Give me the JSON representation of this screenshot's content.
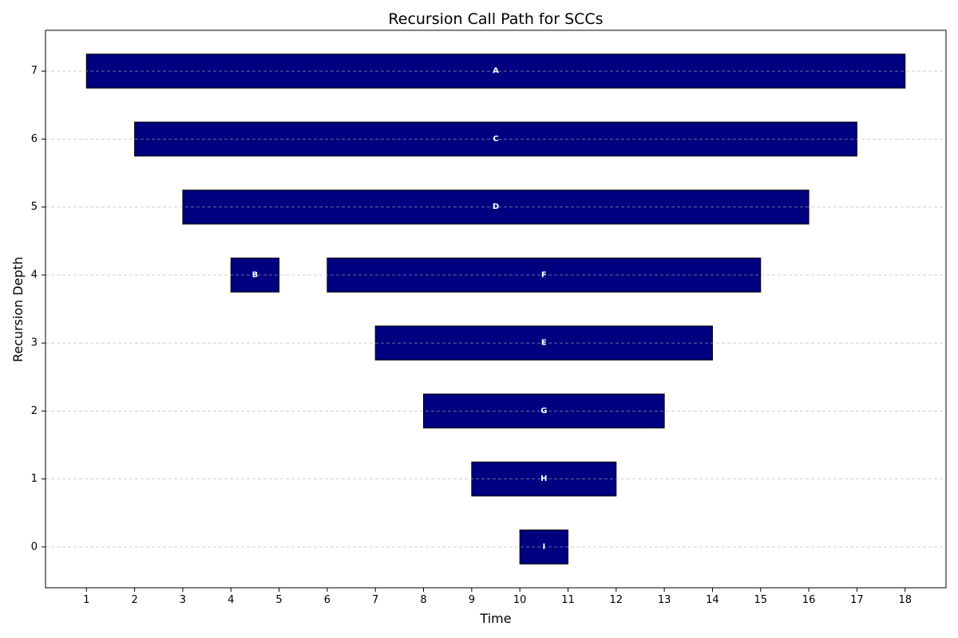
{
  "chart_data": {
    "type": "bar",
    "orientation": "horizontal-gantt",
    "title": "Recursion Call Path for SCCs",
    "xlabel": "Time",
    "ylabel": "Recursion Depth",
    "xticks": [
      1,
      2,
      3,
      4,
      5,
      6,
      7,
      8,
      9,
      10,
      11,
      12,
      13,
      14,
      15,
      16,
      17,
      18
    ],
    "yticks": [
      0,
      1,
      2,
      3,
      4,
      5,
      6,
      7
    ],
    "xlim": [
      0.15,
      18.85
    ],
    "ylim": [
      -0.6,
      7.6
    ],
    "grid": "horizontal-dashed",
    "bar_color": "#000080",
    "label_color": "#ffffff",
    "bars": [
      {
        "label": "A",
        "depth": 7,
        "start": 1,
        "end": 18
      },
      {
        "label": "C",
        "depth": 6,
        "start": 2,
        "end": 17
      },
      {
        "label": "D",
        "depth": 5,
        "start": 3,
        "end": 16
      },
      {
        "label": "B",
        "depth": 4,
        "start": 4,
        "end": 5
      },
      {
        "label": "F",
        "depth": 4,
        "start": 6,
        "end": 15
      },
      {
        "label": "E",
        "depth": 3,
        "start": 7,
        "end": 14
      },
      {
        "label": "G",
        "depth": 2,
        "start": 8,
        "end": 13
      },
      {
        "label": "H",
        "depth": 1,
        "start": 9,
        "end": 12
      },
      {
        "label": "I",
        "depth": 0,
        "start": 10,
        "end": 11
      }
    ]
  }
}
